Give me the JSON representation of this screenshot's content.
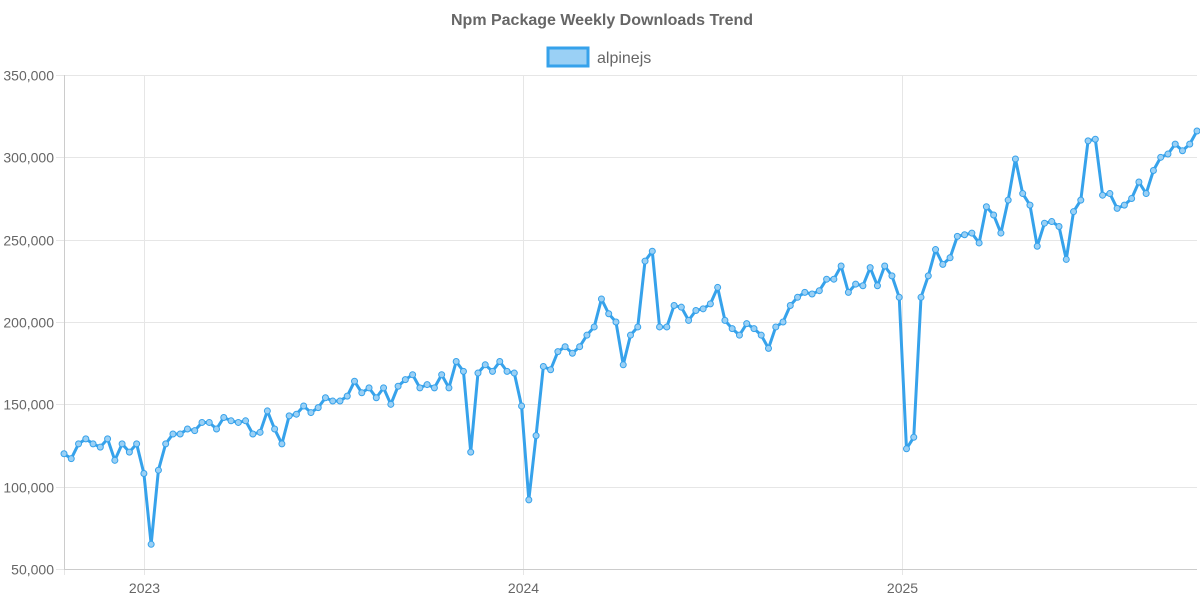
{
  "chart_data": {
    "type": "line",
    "title": "Npm Package Weekly Downloads Trend",
    "legend": {
      "position": "top"
    },
    "grid": true,
    "colors": {
      "line": "#36a2eb",
      "fill": "#9ad0f5"
    },
    "xlim": [
      "2022-10-16",
      "2025-09-14"
    ],
    "ylim": [
      50000,
      350000
    ],
    "y_ticks": [
      50000,
      100000,
      150000,
      200000,
      250000,
      300000,
      350000
    ],
    "y_tick_labels": [
      "50,000",
      "100,000",
      "150,000",
      "200,000",
      "250,000",
      "300,000",
      "350,000"
    ],
    "x_ticks": [
      "2023-01-01",
      "2024-01-01",
      "2025-01-01"
    ],
    "x_tick_labels": [
      "2023",
      "2024",
      "2025"
    ],
    "series": [
      {
        "name": "alpinejs",
        "points": [
          [
            "2022-10-16",
            120000
          ],
          [
            "2022-10-23",
            117000
          ],
          [
            "2022-10-30",
            126000
          ],
          [
            "2022-11-06",
            129000
          ],
          [
            "2022-11-13",
            126000
          ],
          [
            "2022-11-20",
            124000
          ],
          [
            "2022-11-27",
            129000
          ],
          [
            "2022-12-04",
            116000
          ],
          [
            "2022-12-11",
            126000
          ],
          [
            "2022-12-18",
            121000
          ],
          [
            "2022-12-25",
            126000
          ],
          [
            "2023-01-01",
            108000
          ],
          [
            "2023-01-08",
            65000
          ],
          [
            "2023-01-15",
            110000
          ],
          [
            "2023-01-22",
            126000
          ],
          [
            "2023-01-29",
            132000
          ],
          [
            "2023-02-05",
            132000
          ],
          [
            "2023-02-12",
            135000
          ],
          [
            "2023-02-19",
            134000
          ],
          [
            "2023-02-26",
            139000
          ],
          [
            "2023-03-05",
            139000
          ],
          [
            "2023-03-12",
            135000
          ],
          [
            "2023-03-19",
            142000
          ],
          [
            "2023-03-26",
            140000
          ],
          [
            "2023-04-02",
            139000
          ],
          [
            "2023-04-09",
            140000
          ],
          [
            "2023-04-16",
            132000
          ],
          [
            "2023-04-23",
            133000
          ],
          [
            "2023-04-30",
            146000
          ],
          [
            "2023-05-07",
            135000
          ],
          [
            "2023-05-14",
            126000
          ],
          [
            "2023-05-21",
            143000
          ],
          [
            "2023-05-28",
            144000
          ],
          [
            "2023-06-04",
            149000
          ],
          [
            "2023-06-11",
            145000
          ],
          [
            "2023-06-18",
            148000
          ],
          [
            "2023-06-25",
            154000
          ],
          [
            "2023-07-02",
            152000
          ],
          [
            "2023-07-09",
            152000
          ],
          [
            "2023-07-16",
            155000
          ],
          [
            "2023-07-23",
            164000
          ],
          [
            "2023-07-30",
            157000
          ],
          [
            "2023-08-06",
            160000
          ],
          [
            "2023-08-13",
            154000
          ],
          [
            "2023-08-20",
            160000
          ],
          [
            "2023-08-27",
            150000
          ],
          [
            "2023-09-03",
            161000
          ],
          [
            "2023-09-10",
            165000
          ],
          [
            "2023-09-17",
            168000
          ],
          [
            "2023-09-24",
            160000
          ],
          [
            "2023-10-01",
            162000
          ],
          [
            "2023-10-08",
            160000
          ],
          [
            "2023-10-15",
            168000
          ],
          [
            "2023-10-22",
            160000
          ],
          [
            "2023-10-29",
            176000
          ],
          [
            "2023-11-05",
            170000
          ],
          [
            "2023-11-12",
            121000
          ],
          [
            "2023-11-19",
            169000
          ],
          [
            "2023-11-26",
            174000
          ],
          [
            "2023-12-03",
            170000
          ],
          [
            "2023-12-10",
            176000
          ],
          [
            "2023-12-17",
            170000
          ],
          [
            "2023-12-24",
            169000
          ],
          [
            "2023-12-31",
            149000
          ],
          [
            "2024-01-07",
            92000
          ],
          [
            "2024-01-14",
            131000
          ],
          [
            "2024-01-21",
            173000
          ],
          [
            "2024-01-28",
            171000
          ],
          [
            "2024-02-04",
            182000
          ],
          [
            "2024-02-11",
            185000
          ],
          [
            "2024-02-18",
            181000
          ],
          [
            "2024-02-25",
            185000
          ],
          [
            "2024-03-03",
            192000
          ],
          [
            "2024-03-10",
            197000
          ],
          [
            "2024-03-17",
            214000
          ],
          [
            "2024-03-24",
            205000
          ],
          [
            "2024-03-31",
            200000
          ],
          [
            "2024-04-07",
            174000
          ],
          [
            "2024-04-14",
            192000
          ],
          [
            "2024-04-21",
            197000
          ],
          [
            "2024-04-28",
            237000
          ],
          [
            "2024-05-05",
            243000
          ],
          [
            "2024-05-12",
            197000
          ],
          [
            "2024-05-19",
            197000
          ],
          [
            "2024-05-26",
            210000
          ],
          [
            "2024-06-02",
            209000
          ],
          [
            "2024-06-09",
            201000
          ],
          [
            "2024-06-16",
            207000
          ],
          [
            "2024-06-23",
            208000
          ],
          [
            "2024-06-30",
            211000
          ],
          [
            "2024-07-07",
            221000
          ],
          [
            "2024-07-14",
            201000
          ],
          [
            "2024-07-21",
            196000
          ],
          [
            "2024-07-28",
            192000
          ],
          [
            "2024-08-04",
            199000
          ],
          [
            "2024-08-11",
            196000
          ],
          [
            "2024-08-18",
            192000
          ],
          [
            "2024-08-25",
            184000
          ],
          [
            "2024-09-01",
            197000
          ],
          [
            "2024-09-08",
            200000
          ],
          [
            "2024-09-15",
            210000
          ],
          [
            "2024-09-22",
            215000
          ],
          [
            "2024-09-29",
            218000
          ],
          [
            "2024-10-06",
            217000
          ],
          [
            "2024-10-13",
            219000
          ],
          [
            "2024-10-20",
            226000
          ],
          [
            "2024-10-27",
            226000
          ],
          [
            "2024-11-03",
            234000
          ],
          [
            "2024-11-10",
            218000
          ],
          [
            "2024-11-17",
            223000
          ],
          [
            "2024-11-24",
            222000
          ],
          [
            "2024-12-01",
            233000
          ],
          [
            "2024-12-08",
            222000
          ],
          [
            "2024-12-15",
            234000
          ],
          [
            "2024-12-22",
            228000
          ],
          [
            "2024-12-29",
            215000
          ],
          [
            "2025-01-05",
            123000
          ],
          [
            "2025-01-12",
            130000
          ],
          [
            "2025-01-19",
            215000
          ],
          [
            "2025-01-26",
            228000
          ],
          [
            "2025-02-02",
            244000
          ],
          [
            "2025-02-09",
            235000
          ],
          [
            "2025-02-16",
            239000
          ],
          [
            "2025-02-23",
            252000
          ],
          [
            "2025-03-02",
            253000
          ],
          [
            "2025-03-09",
            254000
          ],
          [
            "2025-03-16",
            248000
          ],
          [
            "2025-03-23",
            270000
          ],
          [
            "2025-03-30",
            265000
          ],
          [
            "2025-04-06",
            254000
          ],
          [
            "2025-04-13",
            274000
          ],
          [
            "2025-04-20",
            299000
          ],
          [
            "2025-04-27",
            278000
          ],
          [
            "2025-05-04",
            271000
          ],
          [
            "2025-05-11",
            246000
          ],
          [
            "2025-05-18",
            260000
          ],
          [
            "2025-05-25",
            261000
          ],
          [
            "2025-06-01",
            258000
          ],
          [
            "2025-06-08",
            238000
          ],
          [
            "2025-06-15",
            267000
          ],
          [
            "2025-06-22",
            274000
          ],
          [
            "2025-06-29",
            310000
          ],
          [
            "2025-07-06",
            311000
          ],
          [
            "2025-07-13",
            277000
          ],
          [
            "2025-07-20",
            278000
          ],
          [
            "2025-07-27",
            269000
          ],
          [
            "2025-08-03",
            271000
          ],
          [
            "2025-08-10",
            275000
          ],
          [
            "2025-08-17",
            285000
          ],
          [
            "2025-08-24",
            278000
          ],
          [
            "2025-08-31",
            292000
          ],
          [
            "2025-09-07",
            300000
          ],
          [
            "2025-09-14",
            302000
          ],
          [
            "2025-09-21",
            308000
          ],
          [
            "2025-09-28",
            304000
          ],
          [
            "2025-10-05",
            308000
          ],
          [
            "2025-10-12",
            316000
          ]
        ]
      }
    ]
  }
}
